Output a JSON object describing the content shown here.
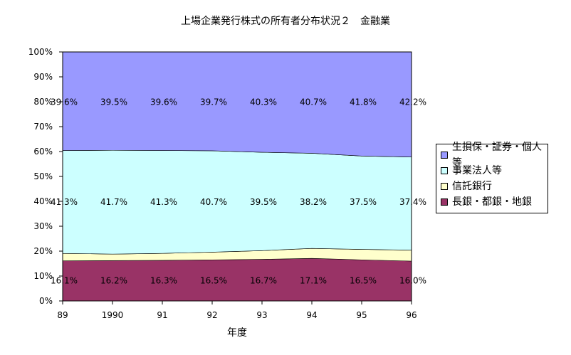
{
  "chart_data": {
    "type": "area",
    "stacked": true,
    "title": "上場企業発行株式の所有者分布状況２　金融業",
    "xlabel": "年度",
    "ylabel": "",
    "categories": [
      "89",
      "1990",
      "91",
      "92",
      "93",
      "94",
      "95",
      "96"
    ],
    "ylim": [
      0,
      100
    ],
    "yticks": [
      "0%",
      "10%",
      "20%",
      "30%",
      "40%",
      "50%",
      "60%",
      "70%",
      "80%",
      "90%",
      "100%"
    ],
    "grid": false,
    "legend_position": "right",
    "series": [
      {
        "name": "長銀・都銀・地銀",
        "color": "#993366",
        "values": [
          16.1,
          16.2,
          16.3,
          16.5,
          16.7,
          17.1,
          16.5,
          16.0
        ],
        "labels": [
          "16.1%",
          "16.2%",
          "16.3%",
          "16.5%",
          "16.7%",
          "17.1%",
          "16.5%",
          "16.0%"
        ]
      },
      {
        "name": "信託銀行",
        "color": "#ffffcc",
        "values": [
          3.0,
          2.6,
          2.8,
          3.1,
          3.5,
          4.0,
          4.2,
          4.4
        ],
        "labels": []
      },
      {
        "name": "事業法人等",
        "color": "#ccffff",
        "values": [
          41.3,
          41.7,
          41.3,
          40.7,
          39.5,
          38.2,
          37.5,
          37.4
        ],
        "labels": [
          "41.3%",
          "41.7%",
          "41.3%",
          "40.7%",
          "39.5%",
          "38.2%",
          "37.5%",
          "37.4%"
        ]
      },
      {
        "name": "生損保・証券・個人等",
        "color": "#9999ff",
        "values": [
          39.6,
          39.5,
          39.6,
          39.7,
          40.3,
          40.7,
          41.8,
          42.2
        ],
        "labels": [
          "39.6%",
          "39.5%",
          "39.6%",
          "39.7%",
          "40.3%",
          "40.7%",
          "41.8%",
          "42.2%"
        ]
      }
    ],
    "legend_order": [
      3,
      2,
      1,
      0
    ]
  }
}
